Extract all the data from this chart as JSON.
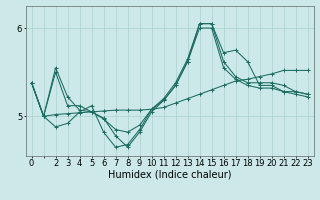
{
  "bg_color": "#cce8e8",
  "line_color": "#1a6b60",
  "grid_color": "#aad0d0",
  "xlabel": "Humidex (Indice chaleur)",
  "xlabel_fontsize": 7,
  "tick_fontsize": 6,
  "yticks": [
    5,
    6
  ],
  "ylim": [
    4.55,
    6.25
  ],
  "xlim": [
    -0.5,
    23.5
  ],
  "xtick_labels": [
    "0",
    "",
    "2",
    "3",
    "4",
    "5",
    "6",
    "7",
    "8",
    "9",
    "10",
    "11",
    "12",
    "13",
    "14",
    "15",
    "16",
    "17",
    "18",
    "19",
    "20",
    "21",
    "22",
    "23"
  ],
  "series": [
    [
      5.38,
      5.0,
      5.55,
      5.22,
      5.07,
      5.05,
      4.97,
      4.85,
      4.82,
      4.9,
      5.08,
      5.2,
      5.38,
      5.65,
      6.05,
      6.05,
      5.62,
      5.45,
      5.38,
      5.38,
      5.38,
      5.35,
      5.28,
      5.25
    ],
    [
      5.38,
      5.0,
      4.88,
      4.92,
      5.05,
      5.12,
      4.82,
      4.65,
      4.68,
      4.85,
      5.08,
      5.18,
      5.35,
      5.62,
      6.05,
      6.05,
      5.72,
      5.75,
      5.62,
      5.35,
      5.35,
      5.28,
      5.28,
      5.25
    ],
    [
      5.38,
      5.0,
      5.5,
      5.12,
      5.12,
      5.05,
      4.98,
      4.78,
      4.65,
      4.82,
      5.05,
      5.18,
      5.35,
      5.62,
      6.0,
      6.0,
      5.55,
      5.42,
      5.35,
      5.32,
      5.32,
      5.28,
      5.25,
      5.22
    ],
    [
      5.38,
      5.0,
      5.02,
      5.03,
      5.04,
      5.05,
      5.06,
      5.07,
      5.07,
      5.07,
      5.08,
      5.1,
      5.15,
      5.2,
      5.25,
      5.3,
      5.35,
      5.4,
      5.42,
      5.45,
      5.48,
      5.52,
      5.52,
      5.52
    ]
  ],
  "figsize": [
    3.2,
    2.0
  ],
  "dpi": 100
}
